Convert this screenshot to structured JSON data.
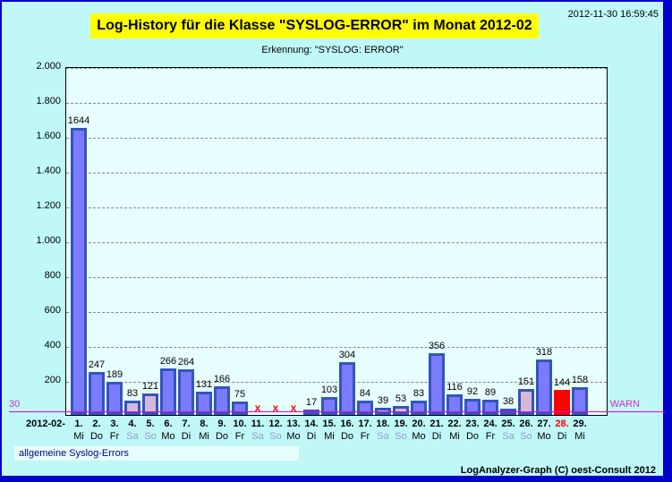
{
  "header": {
    "title": "Log-History für die Klasse \"SYSLOG-ERROR\" im Monat 2012-02",
    "timestamp": "2012-11-30 16:59:45",
    "subtitle": "Erkennung:  \"SYSLOG: ERROR\""
  },
  "warn": {
    "value_label": "30",
    "label": "WARN",
    "color": "#dd00dd"
  },
  "x_prefix": "2012-02-",
  "legend": {
    "text": "allgemeine Syslog-Errors"
  },
  "footer": {
    "credit": "LogAnalyzer-Graph (C) oest-Consult 2012"
  },
  "colors": {
    "weekday_bar": "#7b7bff",
    "weekend_bar": "#d8b8d8",
    "alert_bar": "#ff0000",
    "bar_border": "#3355bb",
    "plot_bg": "#e8ffff",
    "page_bg": "#c0f8f8",
    "title_bg": "#ffff00"
  },
  "chart_data": {
    "type": "bar",
    "title": "Log-History für die Klasse \"SYSLOG-ERROR\" im Monat 2012-02",
    "subtitle": "Erkennung:  \"SYSLOG: ERROR\"",
    "xlabel": "2012-02-",
    "ylabel": "",
    "ylim": [
      0,
      2000
    ],
    "yticks": [
      "200",
      "400",
      "600",
      "800",
      "1.000",
      "1.200",
      "1.400",
      "1.600",
      "1.800",
      "2.000"
    ],
    "grid": true,
    "threshold": {
      "value": 30,
      "label": "WARN"
    },
    "legend": [
      "allgemeine Syslog-Errors"
    ],
    "categories": [
      "1.",
      "2.",
      "3.",
      "4.",
      "5.",
      "6.",
      "7.",
      "8.",
      "9.",
      "10.",
      "11.",
      "12.",
      "13.",
      "14.",
      "15.",
      "16.",
      "17.",
      "18.",
      "19.",
      "20.",
      "21.",
      "22.",
      "23.",
      "24.",
      "25.",
      "26.",
      "27.",
      "28.",
      "29."
    ],
    "weekdays": [
      "Mi",
      "Do",
      "Fr",
      "Sa",
      "So",
      "Mo",
      "Di",
      "Mi",
      "Do",
      "Fr",
      "Sa",
      "So",
      "Mo",
      "Di",
      "Mi",
      "Do",
      "Fr",
      "Sa",
      "So",
      "Mo",
      "Di",
      "Mi",
      "Do",
      "Fr",
      "Sa",
      "So",
      "Mo",
      "Di",
      "Mi"
    ],
    "values": [
      1644,
      247,
      189,
      83,
      121,
      266,
      264,
      131,
      166,
      75,
      null,
      null,
      null,
      17,
      103,
      304,
      84,
      39,
      53,
      83,
      356,
      116,
      92,
      89,
      38,
      151,
      318,
      144,
      158
    ],
    "missing_marker": "x",
    "highlighted_day": "28."
  }
}
